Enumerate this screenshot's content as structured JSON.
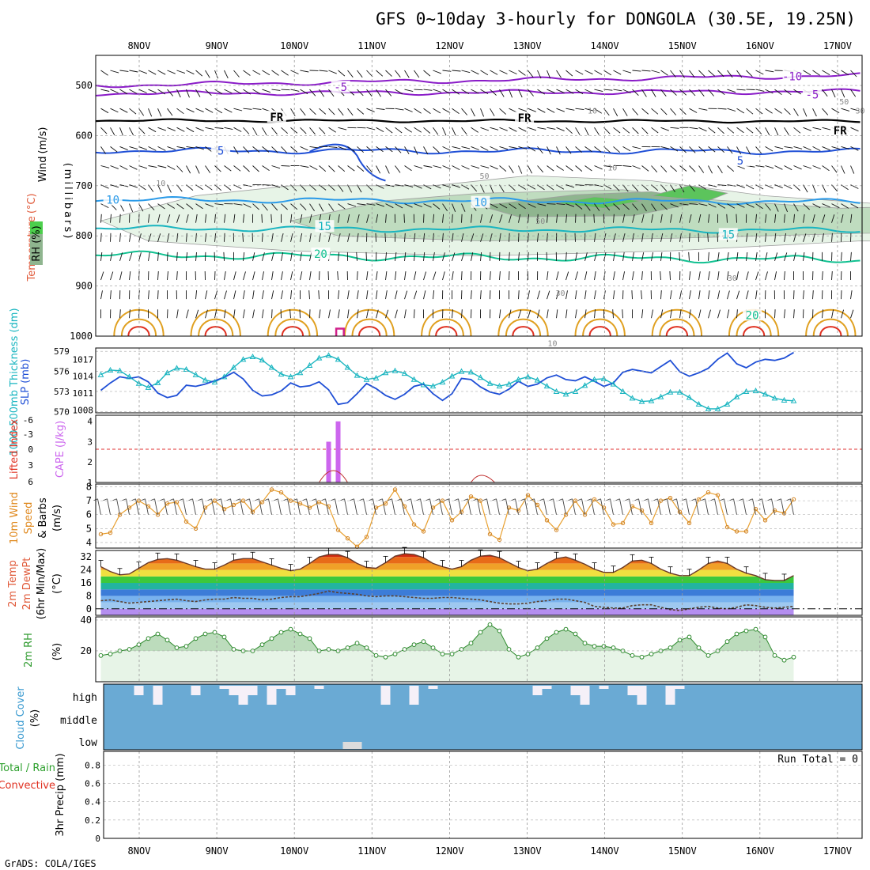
{
  "title": "GFS 0~10day 3-hourly for DONGOLA (30.5E, 19.25N)",
  "credit": "GrADS: COLA/IGES",
  "colors": {
    "purple": "#8a1cc8",
    "blue": "#1f4fd6",
    "lightblue": "#2a9ae8",
    "cyan": "#19b5c0",
    "teal": "#10c090",
    "orange": "#e0a020",
    "red": "#e03020",
    "magenta": "#d0208a",
    "rh_light": "#e7f4e7",
    "rh_mid": "#bfdcbf",
    "rh_dark": "#8fb58f",
    "rh_green": "#5cc45c",
    "cape": "#cc66ee",
    "precip": "#8ab0d8"
  },
  "chart_data": [
    {
      "type": "time_height_cross_section",
      "title": "Wind (m/s) Temperature (°C) RH (%)",
      "ylabel": "(millibars)",
      "yticks": [
        500,
        600,
        700,
        800,
        900,
        1000
      ],
      "ylim": [
        1000,
        440
      ],
      "labels": {
        "wind": "Wind",
        "wind_units": "(m/s)",
        "temperature": "Temperature",
        "temperature_units": "(°C)",
        "rh": "RH (%)",
        "axis": "(millibars)"
      },
      "contour_labels": [
        {
          "text": "-10",
          "time": 173,
          "p": 482
        },
        {
          "text": "-5",
          "time": 60,
          "p": 503
        },
        {
          "text": "-5",
          "time": 178,
          "p": 518
        },
        {
          "text": "FR",
          "time": 44,
          "p": 563
        },
        {
          "text": "FR",
          "time": 106,
          "p": 565
        },
        {
          "text": "FR",
          "time": 185,
          "p": 590
        },
        {
          "text": "5",
          "time": 30,
          "p": 630
        },
        {
          "text": "5",
          "time": 160,
          "p": 650
        },
        {
          "text": "10",
          "time": 3,
          "p": 728
        },
        {
          "text": "10",
          "time": 95,
          "p": 733
        },
        {
          "text": "15",
          "time": 56,
          "p": 781
        },
        {
          "text": "15",
          "time": 157,
          "p": 797
        },
        {
          "text": "20",
          "time": 55,
          "p": 836
        },
        {
          "text": "20",
          "time": 163,
          "p": 958
        },
        {
          "text": "10",
          "time": 15,
          "p": 692
        },
        {
          "text": "10",
          "time": 128,
          "p": 662
        },
        {
          "text": "10",
          "time": 123,
          "p": 548
        },
        {
          "text": "50",
          "time": 96,
          "p": 678
        },
        {
          "text": "50",
          "time": 110,
          "p": 768
        },
        {
          "text": "50",
          "time": 186,
          "p": 530
        },
        {
          "text": "30",
          "time": 190,
          "p": 548
        },
        {
          "text": "30",
          "time": 158,
          "p": 882
        },
        {
          "text": "30",
          "time": 115,
          "p": 912
        },
        {
          "text": "10",
          "time": 113,
          "p": 1012
        }
      ]
    },
    {
      "type": "line",
      "title": "SLP (mb) and 1000-500mb Thickness (dm)",
      "labels": {
        "thickness": "1000-500mb Thickness (dm)",
        "slp": "SLP (mb)"
      },
      "thickness_ticks": [
        570,
        573,
        576,
        579
      ],
      "slp_ticks": [
        1008,
        1011,
        1014,
        1017
      ],
      "thickness_dm": [
        575.5,
        576.2,
        576.1,
        575.2,
        574.2,
        573.6,
        574.3,
        575.8,
        576.5,
        576.3,
        575.5,
        574.7,
        574.4,
        575.2,
        576.6,
        577.8,
        578.2,
        577.7,
        576.6,
        575.6,
        575.2,
        575.8,
        576.9,
        578.0,
        578.4,
        577.8,
        576.6,
        575.4,
        574.8,
        575.0,
        575.8,
        576.1,
        575.7,
        574.8,
        574.0,
        573.8,
        574.4,
        575.3,
        576.0,
        575.9,
        575.1,
        574.2,
        573.8,
        574.1,
        574.8,
        575.2,
        574.7,
        573.8,
        573.0,
        572.6,
        573.0,
        573.9,
        574.8,
        574.9,
        574.1,
        573.0,
        572.0,
        571.5,
        571.6,
        572.2,
        572.9,
        572.9,
        572.1,
        571.1,
        570.4,
        570.4,
        571.1,
        572.2,
        573.0,
        573.1,
        572.6,
        572.0,
        571.7,
        571.6
      ],
      "slp_mb": [
        1011.5,
        1012.8,
        1013.9,
        1013.6,
        1013.9,
        1013.0,
        1011.0,
        1010.2,
        1010.6,
        1012.4,
        1012.2,
        1012.6,
        1013.2,
        1013.8,
        1014.7,
        1013.5,
        1011.5,
        1010.5,
        1010.7,
        1011.4,
        1012.8,
        1012.1,
        1012.3,
        1013.0,
        1011.6,
        1009.0,
        1009.3,
        1010.9,
        1012.7,
        1011.8,
        1010.6,
        1009.9,
        1010.8,
        1012.2,
        1012.6,
        1010.9,
        1009.7,
        1010.9,
        1013.6,
        1013.4,
        1012.1,
        1011.2,
        1010.8,
        1011.7,
        1013.1,
        1012.2,
        1012.6,
        1013.7,
        1014.2,
        1013.4,
        1013.2,
        1013.9,
        1013.1,
        1012.2,
        1012.8,
        1014.7,
        1015.2,
        1014.9,
        1014.6,
        1015.7,
        1016.8,
        1014.8,
        1014.0,
        1014.6,
        1015.4,
        1017.0,
        1018.1,
        1016.2,
        1015.5,
        1016.5,
        1017.0,
        1016.8,
        1017.2,
        1018.2
      ]
    },
    {
      "type": "bar",
      "title": "Lifted Index and CAPE (J/kg)",
      "labels": {
        "lifted_index": "Lifted Index",
        "cape": "CAPE (J/kg)"
      },
      "li_ticks": [
        "-6",
        "-3",
        "0",
        "3",
        "6"
      ],
      "cape_ticks": [
        "1",
        "2",
        "3",
        "4"
      ],
      "cape_bars": [
        {
          "step": 24,
          "value": 3
        },
        {
          "step": 25,
          "value": 4
        }
      ],
      "lifted_index_dashed": 0
    },
    {
      "type": "line",
      "title": "10m Wind Speed & Barbs (m/s)",
      "labels": {
        "line1": "10m Wind",
        "line2": "Speed",
        "line3": "& Barbs",
        "units": "(m/s)"
      },
      "yticks": [
        4,
        5,
        6,
        7,
        8
      ],
      "ylim": [
        3.6,
        8.2
      ],
      "speed": [
        4.6,
        4.7,
        6.0,
        6.5,
        7.0,
        6.6,
        6.0,
        6.8,
        6.9,
        5.5,
        5.0,
        6.5,
        7.0,
        6.4,
        6.7,
        7.0,
        6.2,
        6.9,
        7.8,
        7.6,
        7.0,
        6.8,
        6.5,
        6.9,
        6.6,
        4.9,
        4.3,
        3.7,
        4.4,
        6.5,
        6.8,
        7.8,
        6.6,
        5.3,
        4.8,
        6.5,
        7.0,
        5.6,
        6.2,
        7.3,
        7.0,
        4.6,
        4.2,
        6.5,
        6.3,
        7.4,
        6.7,
        5.6,
        4.9,
        6.0,
        7.0,
        6.0,
        7.1,
        6.5,
        5.3,
        5.4,
        6.6,
        6.3,
        5.4,
        7.0,
        7.2,
        6.2,
        5.4,
        7.1,
        7.6,
        7.4,
        5.1,
        4.8,
        4.8,
        6.4,
        5.6,
        6.3,
        6.1,
        7.1
      ]
    },
    {
      "type": "area",
      "title": "2m Temp / 2m DewPt (°C) with 6hr Min/Max",
      "labels": {
        "temp": "2m Temp",
        "dewpt": "2m DewPt",
        "minmax": "(6hr Min/Max)",
        "units": "(°C)"
      },
      "yticks": [
        0,
        8,
        16,
        24,
        32
      ],
      "ylim": [
        -4,
        36
      ],
      "temperature": [
        26.0,
        23.0,
        21.0,
        21.5,
        25.0,
        28.5,
        30.5,
        31.0,
        30.0,
        28.0,
        26.0,
        24.5,
        24.5,
        27.0,
        30.0,
        31.0,
        31.0,
        29.0,
        27.0,
        25.0,
        23.5,
        24.5,
        28.0,
        32.0,
        33.5,
        33.5,
        31.5,
        28.0,
        25.5,
        25.0,
        28.5,
        32.5,
        34.0,
        33.5,
        31.5,
        28.0,
        26.0,
        24.5,
        26.0,
        30.0,
        32.5,
        33.0,
        31.5,
        28.5,
        25.5,
        23.5,
        24.5,
        28.0,
        31.0,
        32.0,
        30.0,
        27.5,
        24.5,
        22.5,
        22.5,
        25.5,
        29.5,
        30.0,
        28.0,
        24.5,
        22.0,
        20.5,
        20.5,
        24.0,
        28.0,
        29.5,
        28.0,
        24.5,
        22.0,
        20.5,
        18.0,
        17.5,
        17.5,
        20.5
      ],
      "dewpoint": [
        5.0,
        5.5,
        4.5,
        3.5,
        4.0,
        4.5,
        5.0,
        5.5,
        6.0,
        5.0,
        4.5,
        5.5,
        6.0,
        6.0,
        7.0,
        6.5,
        6.5,
        5.5,
        6.0,
        7.0,
        7.5,
        7.5,
        8.5,
        9.5,
        11.0,
        10.0,
        9.5,
        9.0,
        8.0,
        7.5,
        8.0,
        8.0,
        7.5,
        7.0,
        6.5,
        6.5,
        7.0,
        7.0,
        6.5,
        6.0,
        5.5,
        4.5,
        3.5,
        3.0,
        3.0,
        3.5,
        4.5,
        5.0,
        6.0,
        6.0,
        5.0,
        4.0,
        1.5,
        1.0,
        0.5,
        0.5,
        2.0,
        2.5,
        2.5,
        1.0,
        -0.5,
        -1.0,
        0.0,
        1.0,
        1.5,
        0.5,
        0.0,
        1.0,
        2.5,
        2.0,
        1.0,
        0.5,
        1.0,
        1.5
      ]
    },
    {
      "type": "area",
      "title": "2m RH (%)",
      "labels": {
        "name": "2m RH",
        "units": "(%)"
      },
      "yticks": [
        20,
        40
      ],
      "ylim": [
        0,
        42
      ],
      "rh": [
        17,
        18,
        20,
        21,
        24,
        28,
        31,
        27,
        22,
        23,
        28,
        31,
        32,
        29,
        21,
        20,
        20,
        24,
        28,
        32,
        34,
        31,
        28,
        20,
        21,
        20,
        22,
        25,
        22,
        17,
        16,
        18,
        21,
        24,
        26,
        22,
        18,
        18,
        21,
        25,
        32,
        37,
        33,
        21,
        16,
        18,
        22,
        28,
        32,
        34,
        31,
        25,
        23,
        23,
        22,
        20,
        17,
        16,
        18,
        20,
        22,
        27,
        29,
        22,
        17,
        20,
        26,
        31,
        33,
        34,
        29,
        17,
        14,
        16
      ]
    },
    {
      "type": "heatmap",
      "title": "Cloud Cover (%)",
      "labels": {
        "name": "Cloud Cover",
        "units": "(%)"
      },
      "levels": [
        "high",
        "middle",
        "low"
      ],
      "high_cover_steps": [
        4,
        6,
        10,
        13,
        14,
        15,
        16,
        18,
        19,
        20,
        23,
        30,
        33,
        35,
        46,
        47,
        50,
        51,
        53,
        56,
        57,
        60,
        61
      ],
      "low_cover_steps": [
        26,
        27
      ]
    },
    {
      "type": "bar",
      "title": "3hr Precip (mm) Total / Rain Convective",
      "labels": {
        "name": "3hr Precip (mm)",
        "total": "Total / Rain",
        "convective": "Convective"
      },
      "yticks": [
        "0",
        "0.2",
        "0.4",
        "0.6",
        "0.8"
      ],
      "ylim": [
        0,
        0.95
      ],
      "run_total": "Run Total = 0",
      "values": []
    }
  ],
  "time_axis": {
    "top_labels": [
      "8NOV",
      "9NOV",
      "10NOV",
      "11NOV",
      "12NOV",
      "13NOV",
      "14NOV",
      "15NOV",
      "16NOV",
      "17NOV"
    ],
    "bottom_labels": [
      "8NOV",
      "9NOV",
      "10NOV",
      "11NOV",
      "12NOV",
      "13NOV",
      "14NOV",
      "15NOV",
      "16NOV",
      "17NOV"
    ]
  }
}
